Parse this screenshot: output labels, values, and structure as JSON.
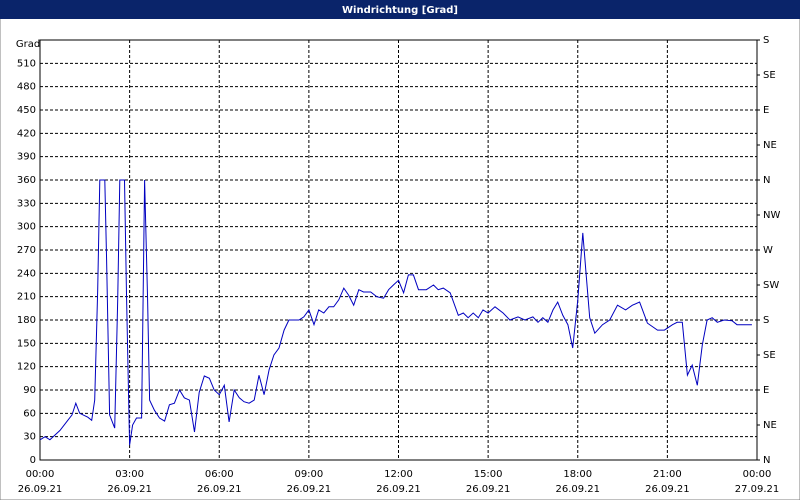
{
  "chart_data": {
    "type": "line",
    "title": "Windrichtung [Grad]",
    "y_label": "Grad",
    "x": [
      0,
      0.17,
      0.33,
      0.67,
      0.93,
      1.07,
      1.2,
      1.33,
      1.6,
      1.73,
      1.83,
      1.93,
      2.0,
      2.17,
      2.23,
      2.33,
      2.5,
      2.6,
      2.67,
      2.83,
      2.9,
      3.0,
      3.1,
      3.23,
      3.4,
      3.5,
      3.6,
      3.67,
      3.83,
      4.0,
      4.17,
      4.33,
      4.5,
      4.67,
      4.83,
      5.0,
      5.17,
      5.33,
      5.5,
      5.67,
      5.83,
      6.0,
      6.17,
      6.33,
      6.5,
      6.67,
      6.83,
      7.0,
      7.17,
      7.33,
      7.5,
      7.67,
      7.83,
      8.0,
      8.17,
      8.33,
      8.67,
      8.83,
      9.0,
      9.17,
      9.33,
      9.5,
      9.67,
      9.83,
      10.0,
      10.17,
      10.33,
      10.5,
      10.67,
      10.83,
      11.07,
      11.27,
      11.5,
      11.67,
      11.83,
      12.0,
      12.17,
      12.33,
      12.5,
      12.67,
      12.93,
      13.17,
      13.33,
      13.5,
      13.73,
      14.0,
      14.17,
      14.33,
      14.5,
      14.67,
      14.83,
      15.0,
      15.23,
      15.5,
      15.73,
      16.0,
      16.23,
      16.5,
      16.67,
      16.83,
      17.0,
      17.17,
      17.33,
      17.5,
      17.67,
      17.83,
      18.0,
      18.17,
      18.27,
      18.4,
      18.57,
      18.83,
      19.07,
      19.33,
      19.6,
      19.83,
      20.07,
      20.33,
      20.67,
      20.9,
      21.17,
      21.33,
      21.5,
      21.67,
      21.83,
      22.0,
      22.17,
      22.33,
      22.5,
      22.67,
      22.9,
      23.17,
      23.33,
      23.6,
      23.83
    ],
    "series": [
      {
        "name": "Windrichtung",
        "color": "#0000c0",
        "values": [
          26,
          30,
          26,
          38,
          51,
          58,
          73,
          60,
          55,
          51,
          77,
          219,
          360,
          360,
          257,
          58,
          41,
          206,
          360,
          360,
          206,
          19,
          45,
          54,
          54,
          360,
          206,
          77,
          64,
          54,
          50,
          71,
          73,
          90,
          80,
          77,
          36,
          87,
          108,
          105,
          90,
          84,
          96,
          49,
          90,
          80,
          75,
          73,
          77,
          109,
          84,
          116,
          135,
          144,
          167,
          180,
          180,
          184,
          193,
          174,
          193,
          189,
          197,
          197,
          206,
          221,
          212,
          199,
          219,
          216,
          216,
          210,
          208,
          219,
          225,
          231,
          215,
          238,
          238,
          219,
          219,
          225,
          219,
          221,
          215,
          186,
          189,
          183,
          189,
          183,
          193,
          189,
          197,
          189,
          180,
          184,
          180,
          184,
          177,
          183,
          177,
          193,
          203,
          186,
          174,
          144,
          206,
          292,
          244,
          183,
          163,
          174,
          180,
          199,
          193,
          199,
          203,
          176,
          167,
          167,
          174,
          177,
          177,
          109,
          122,
          96,
          148,
          180,
          183,
          177,
          180,
          179,
          174,
          174,
          174
        ]
      }
    ],
    "xlim": [
      0,
      24
    ],
    "xticks": [
      {
        "value": 0,
        "label": "00:00"
      },
      {
        "value": 3,
        "label": "03:00"
      },
      {
        "value": 6,
        "label": "06:00"
      },
      {
        "value": 9,
        "label": "09:00"
      },
      {
        "value": 12,
        "label": "12:00"
      },
      {
        "value": 15,
        "label": "15:00"
      },
      {
        "value": 18,
        "label": "18:00"
      },
      {
        "value": 21,
        "label": "21:00"
      },
      {
        "value": 24,
        "label": "00:00"
      }
    ],
    "xtick_dates": [
      "26.09.21",
      "26.09.21",
      "26.09.21",
      "26.09.21",
      "26.09.21",
      "26.09.21",
      "26.09.21",
      "26.09.21",
      "27.09.21"
    ],
    "ylim": [
      0,
      540
    ],
    "yticks": [
      0,
      30,
      60,
      90,
      120,
      150,
      180,
      210,
      240,
      270,
      300,
      330,
      360,
      390,
      420,
      450,
      480,
      510
    ],
    "y2lim": [
      0,
      540
    ],
    "y2ticks": [
      {
        "value": 0,
        "label": "N"
      },
      {
        "value": 45,
        "label": "NE"
      },
      {
        "value": 90,
        "label": "E"
      },
      {
        "value": 135,
        "label": "SE"
      },
      {
        "value": 180,
        "label": "S"
      },
      {
        "value": 225,
        "label": "SW"
      },
      {
        "value": 270,
        "label": "W"
      },
      {
        "value": 315,
        "label": "NW"
      },
      {
        "value": 360,
        "label": "N"
      },
      {
        "value": 405,
        "label": "NE"
      },
      {
        "value": 450,
        "label": "E"
      },
      {
        "value": 495,
        "label": "SE"
      },
      {
        "value": 540,
        "label": "S"
      }
    ],
    "grid": true
  }
}
